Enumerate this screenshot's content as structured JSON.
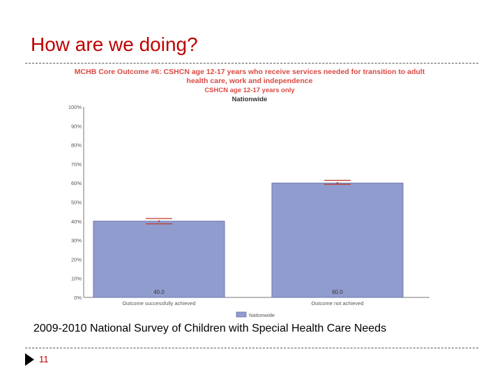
{
  "slide": {
    "title": "How are we doing?",
    "source_note": "2009-2010 National Survey of Children with Special Health Care Needs",
    "page_number": "11"
  },
  "colors": {
    "title": "#c00000",
    "bar_fill": "#919cce",
    "bar_stroke": "#6a76a8",
    "error_bar": "#c0392b",
    "chart_title": "#d94a43"
  },
  "chart_data": {
    "type": "bar",
    "title": "MCHB Core Outcome #6: CSHCN age 12-17 years who receive services needed for transition to adult health care, work and independence",
    "subtitle": "CSHCN age 12-17 years only",
    "scope_label": "Nationwide",
    "categories": [
      "Outcome successfully achieved",
      "Outcome not achieved"
    ],
    "series": [
      {
        "name": "Nationwide",
        "values": [
          40.0,
          60.0
        ],
        "value_labels": [
          "40.0",
          "60.0"
        ],
        "ci_low": [
          38.6,
          59.3
        ],
        "ci_high": [
          41.4,
          61.4
        ]
      }
    ],
    "y_ticks": [
      "0%",
      "10%",
      "20%",
      "30%",
      "40%",
      "50%",
      "60%",
      "70%",
      "80%",
      "90%",
      "100%"
    ],
    "ylim": [
      0,
      100
    ],
    "legend": "Nationwide",
    "legend_position": "bottom-center"
  }
}
